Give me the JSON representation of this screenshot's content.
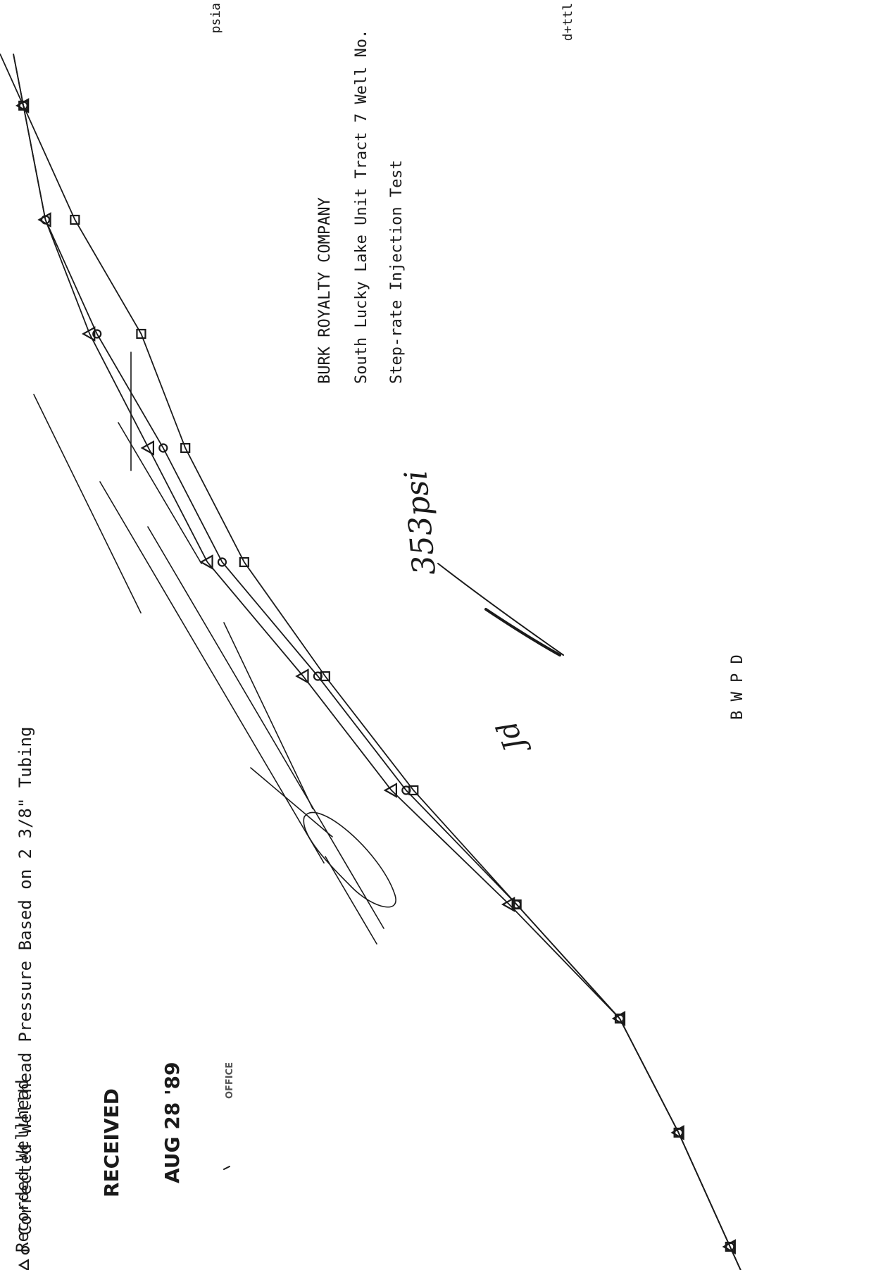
{
  "header": {
    "top_left_fragment": "psia",
    "top_right_fragment": "d+ttl"
  },
  "legend": {
    "recorded_label": "Recorded Wellhead",
    "corrected_label": "Corrected Wellhead Pressure Based on 2 3/8\" Tubing"
  },
  "stamp": {
    "received": "RECEIVED",
    "date": "AUG 28 '89",
    "office": "OFFICE"
  },
  "title_block": {
    "company": "BURK ROYALTY COMPANY",
    "well": "South Lucky Lake Unit Tract 7 Well No.",
    "test": "Step-rate Injection Test"
  },
  "handwritten": {
    "pressure_note": "353psi",
    "initials": "Jd"
  },
  "axis": {
    "xlabel": "B W P D"
  },
  "colors": {
    "ink": "#1a1a1a",
    "paper": "#ffffff"
  },
  "chart_data": {
    "type": "line",
    "title": "",
    "xlabel": "B W P D",
    "ylabel": "psia",
    "orientation": "rotated-90-ccw",
    "grid": false,
    "legend": "top-left",
    "marker_legend": [
      {
        "marker": "triangle",
        "label": "Recorded Wellhead"
      },
      {
        "marker": "circle",
        "label": "Corrected Wellhead Pressure Based on 2 3/8\" Tubing"
      }
    ],
    "series": [
      {
        "name": "Recorded Wellhead",
        "marker": "triangle",
        "x": [
          1,
          2,
          3,
          4,
          5,
          6,
          7,
          8,
          9,
          10,
          11
        ],
        "y": [
          7,
          14,
          22,
          37,
          53,
          65,
          78,
          86,
          94,
          100,
          103
        ]
      },
      {
        "name": "Corrected Wellhead Pressure Based on 2 3/8\" Tubing",
        "marker": "circle",
        "x": [
          1,
          2,
          3,
          4,
          5,
          6,
          7,
          8,
          9,
          10,
          11
        ],
        "y": [
          7,
          14,
          22,
          36,
          51,
          63,
          76,
          84,
          93,
          100,
          103
        ]
      },
      {
        "name": "",
        "marker": "square",
        "x": [
          1,
          2,
          3,
          4,
          5,
          6,
          7,
          8,
          9,
          10,
          11
        ],
        "y": [
          7,
          14,
          22,
          36,
          50,
          62,
          73,
          81,
          87,
          96,
          103
        ]
      }
    ]
  }
}
